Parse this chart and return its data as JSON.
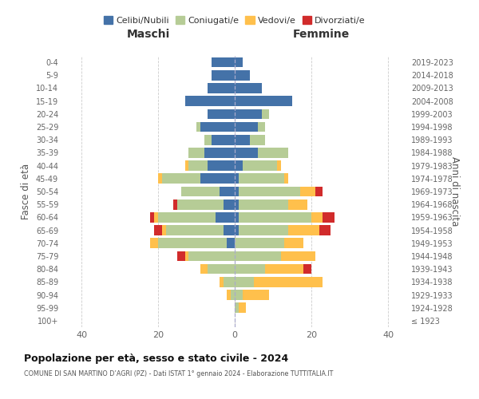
{
  "age_groups": [
    "100+",
    "95-99",
    "90-94",
    "85-89",
    "80-84",
    "75-79",
    "70-74",
    "65-69",
    "60-64",
    "55-59",
    "50-54",
    "45-49",
    "40-44",
    "35-39",
    "30-34",
    "25-29",
    "20-24",
    "15-19",
    "10-14",
    "5-9",
    "0-4"
  ],
  "birth_years": [
    "≤ 1923",
    "1924-1928",
    "1929-1933",
    "1934-1938",
    "1939-1943",
    "1944-1948",
    "1949-1953",
    "1954-1958",
    "1959-1963",
    "1964-1968",
    "1969-1973",
    "1974-1978",
    "1979-1983",
    "1984-1988",
    "1989-1993",
    "1994-1998",
    "1999-2003",
    "2004-2008",
    "2009-2013",
    "2014-2018",
    "2019-2023"
  ],
  "males": {
    "celibi": [
      0,
      0,
      0,
      0,
      0,
      0,
      2,
      3,
      5,
      3,
      4,
      9,
      7,
      8,
      6,
      9,
      7,
      13,
      7,
      6,
      6
    ],
    "coniugati": [
      0,
      0,
      1,
      3,
      7,
      12,
      18,
      15,
      15,
      12,
      10,
      10,
      5,
      4,
      2,
      1,
      0,
      0,
      0,
      0,
      0
    ],
    "vedovi": [
      0,
      0,
      1,
      1,
      2,
      1,
      2,
      1,
      1,
      0,
      0,
      1,
      1,
      0,
      0,
      0,
      0,
      0,
      0,
      0,
      0
    ],
    "divorziati": [
      0,
      0,
      0,
      0,
      0,
      2,
      0,
      2,
      1,
      1,
      0,
      0,
      0,
      0,
      0,
      0,
      0,
      0,
      0,
      0,
      0
    ]
  },
  "females": {
    "nubili": [
      0,
      0,
      0,
      0,
      0,
      0,
      0,
      1,
      1,
      1,
      1,
      1,
      2,
      6,
      4,
      6,
      7,
      15,
      7,
      4,
      2
    ],
    "coniugate": [
      0,
      1,
      2,
      5,
      8,
      12,
      13,
      13,
      19,
      13,
      16,
      12,
      9,
      8,
      4,
      2,
      2,
      0,
      0,
      0,
      0
    ],
    "vedove": [
      0,
      2,
      7,
      18,
      10,
      9,
      5,
      8,
      3,
      5,
      4,
      1,
      1,
      0,
      0,
      0,
      0,
      0,
      0,
      0,
      0
    ],
    "divorziate": [
      0,
      0,
      0,
      0,
      2,
      0,
      0,
      3,
      3,
      0,
      2,
      0,
      0,
      0,
      0,
      0,
      0,
      0,
      0,
      0,
      0
    ]
  },
  "colors": {
    "celibi": "#4472a8",
    "coniugati": "#b6cc96",
    "vedovi": "#ffc04c",
    "divorziati": "#d12b2b"
  },
  "xlim": 45,
  "title": "Popolazione per età, sesso e stato civile - 2024",
  "subtitle": "COMUNE DI SAN MARTINO D’AGRI (PZ) - Dati ISTAT 1° gennaio 2024 - Elaborazione TUTTITALIA.IT",
  "xlabel_left": "Maschi",
  "xlabel_right": "Femmine",
  "ylabel_left": "Fasce di età",
  "ylabel_right": "Anni di nascita",
  "legend_labels": [
    "Celibi/Nubili",
    "Coniugati/e",
    "Vedovi/e",
    "Divorziati/e"
  ],
  "bg_color": "#ffffff"
}
